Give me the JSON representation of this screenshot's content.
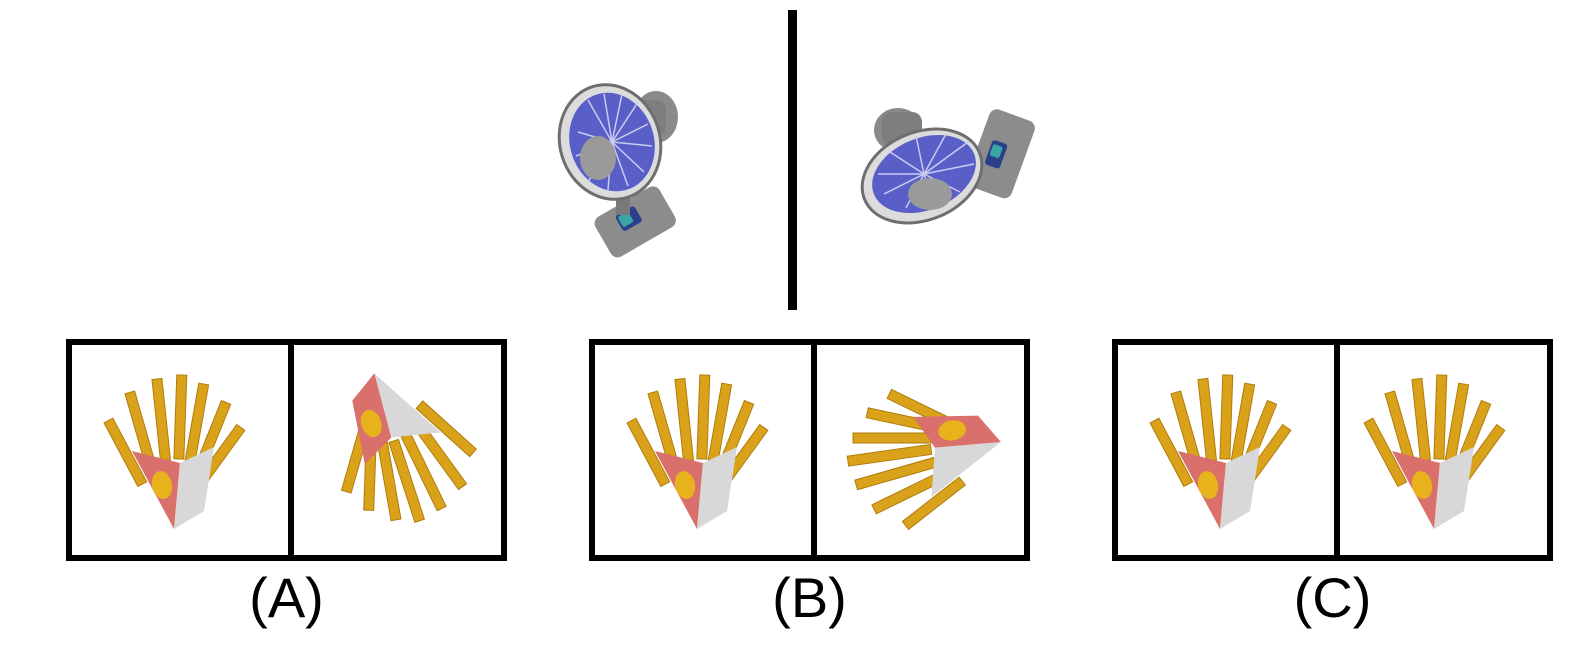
{
  "options": [
    {
      "label": "(A)"
    },
    {
      "label": "(B)"
    },
    {
      "label": "(C)"
    }
  ],
  "icons": {
    "reference_left": "desk-fan-icon",
    "reference_right": "desk-fan-icon",
    "option_object": "french-fries-icon"
  },
  "colors": {
    "fan_body": "#8c8c8c",
    "fan_blades": "#5a5fc8",
    "fries": "#d9a21a",
    "box_red": "#d9706b",
    "box_white": "#d8d8d8",
    "box_logo": "#e8b21d"
  }
}
